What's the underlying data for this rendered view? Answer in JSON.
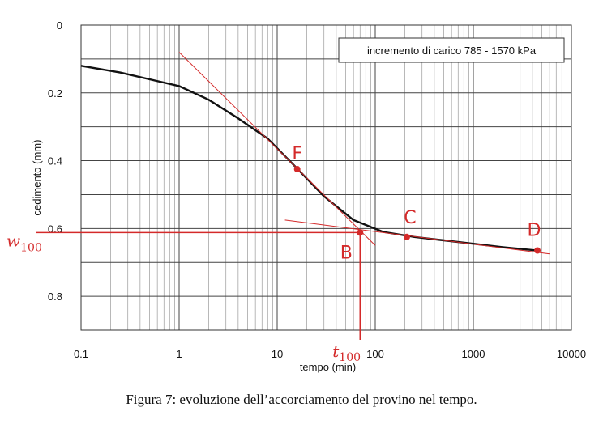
{
  "chart_data": {
    "type": "line",
    "xscale": "log",
    "xlim": [
      0.1,
      10000
    ],
    "ylim": [
      0,
      0.9
    ],
    "y_inverted": true,
    "grid": true,
    "xlabel": "tempo (min)",
    "ylabel": "cedimento (mm)",
    "xticks": [
      "0.1",
      "1",
      "10",
      "100",
      "1000",
      "10000"
    ],
    "yticks": [
      "0",
      "0.2",
      "0.4",
      "0.6",
      "0.8"
    ],
    "legend": {
      "text": "incremento di carico 785 - 1570 kPa",
      "placement": "top-right"
    },
    "series": [
      {
        "color": "#111111",
        "x": [
          0.1,
          0.25,
          0.5,
          1,
          2,
          4,
          8,
          15,
          30,
          60,
          120,
          250,
          500,
          1000,
          2000,
          4500
        ],
        "y": [
          0.12,
          0.14,
          0.16,
          0.18,
          0.22,
          0.275,
          0.335,
          0.415,
          0.505,
          0.575,
          0.61,
          0.625,
          0.635,
          0.645,
          0.655,
          0.665
        ]
      }
    ],
    "annotations": {
      "color": "#d42a2a",
      "tangent_lines": [
        {
          "x": [
            1,
            100
          ],
          "y": [
            0.08,
            0.65
          ]
        },
        {
          "x": [
            12,
            6000
          ],
          "y": [
            0.575,
            0.675
          ]
        }
      ],
      "reference_lines": {
        "w100": 0.612,
        "t100": 70
      },
      "points": [
        {
          "label": "F",
          "x": 16,
          "y": 0.425
        },
        {
          "label": "B",
          "x": 70,
          "y": 0.612
        },
        {
          "label": "C",
          "x": 210,
          "y": 0.625
        },
        {
          "label": "D",
          "x": 4500,
          "y": 0.665
        }
      ],
      "w_label": {
        "main": "w",
        "sub": "100"
      },
      "t_label": {
        "main": "t",
        "sub": "100"
      }
    }
  },
  "caption": "Figura 7: evoluzione dell’accorciamento del provino nel tempo."
}
